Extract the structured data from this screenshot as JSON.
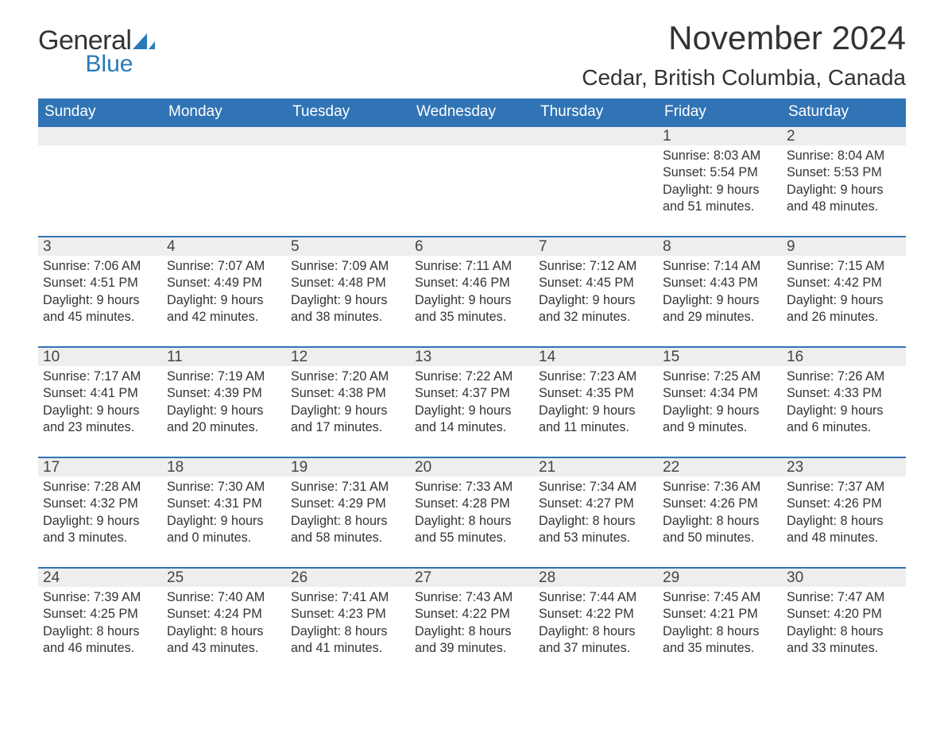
{
  "brand": {
    "text_general": "General",
    "text_blue": "Blue",
    "logo_bg": "#2a7ab8",
    "text_color_dark": "#333333"
  },
  "title": {
    "month": "November 2024",
    "location": "Cedar, British Columbia, Canada"
  },
  "colors": {
    "header_bg": "#3174b5",
    "header_text": "#ffffff",
    "date_bar_bg": "#eeeeee",
    "date_bar_border": "#3174b5",
    "body_bg": "#ffffff",
    "text": "#333333"
  },
  "typography": {
    "month_fontsize": 42,
    "location_fontsize": 28,
    "dayofweek_fontsize": 19,
    "date_fontsize": 19,
    "body_fontsize": 16.2,
    "font_family": "Arial, Helvetica, sans-serif"
  },
  "calendar": {
    "type": "table",
    "days_of_week": [
      "Sunday",
      "Monday",
      "Tuesday",
      "Wednesday",
      "Thursday",
      "Friday",
      "Saturday"
    ],
    "weeks": [
      [
        null,
        null,
        null,
        null,
        null,
        {
          "date": "1",
          "sunrise": "Sunrise: 8:03 AM",
          "sunset": "Sunset: 5:54 PM",
          "daylight": "Daylight: 9 hours and 51 minutes."
        },
        {
          "date": "2",
          "sunrise": "Sunrise: 8:04 AM",
          "sunset": "Sunset: 5:53 PM",
          "daylight": "Daylight: 9 hours and 48 minutes."
        }
      ],
      [
        {
          "date": "3",
          "sunrise": "Sunrise: 7:06 AM",
          "sunset": "Sunset: 4:51 PM",
          "daylight": "Daylight: 9 hours and 45 minutes."
        },
        {
          "date": "4",
          "sunrise": "Sunrise: 7:07 AM",
          "sunset": "Sunset: 4:49 PM",
          "daylight": "Daylight: 9 hours and 42 minutes."
        },
        {
          "date": "5",
          "sunrise": "Sunrise: 7:09 AM",
          "sunset": "Sunset: 4:48 PM",
          "daylight": "Daylight: 9 hours and 38 minutes."
        },
        {
          "date": "6",
          "sunrise": "Sunrise: 7:11 AM",
          "sunset": "Sunset: 4:46 PM",
          "daylight": "Daylight: 9 hours and 35 minutes."
        },
        {
          "date": "7",
          "sunrise": "Sunrise: 7:12 AM",
          "sunset": "Sunset: 4:45 PM",
          "daylight": "Daylight: 9 hours and 32 minutes."
        },
        {
          "date": "8",
          "sunrise": "Sunrise: 7:14 AM",
          "sunset": "Sunset: 4:43 PM",
          "daylight": "Daylight: 9 hours and 29 minutes."
        },
        {
          "date": "9",
          "sunrise": "Sunrise: 7:15 AM",
          "sunset": "Sunset: 4:42 PM",
          "daylight": "Daylight: 9 hours and 26 minutes."
        }
      ],
      [
        {
          "date": "10",
          "sunrise": "Sunrise: 7:17 AM",
          "sunset": "Sunset: 4:41 PM",
          "daylight": "Daylight: 9 hours and 23 minutes."
        },
        {
          "date": "11",
          "sunrise": "Sunrise: 7:19 AM",
          "sunset": "Sunset: 4:39 PM",
          "daylight": "Daylight: 9 hours and 20 minutes."
        },
        {
          "date": "12",
          "sunrise": "Sunrise: 7:20 AM",
          "sunset": "Sunset: 4:38 PM",
          "daylight": "Daylight: 9 hours and 17 minutes."
        },
        {
          "date": "13",
          "sunrise": "Sunrise: 7:22 AM",
          "sunset": "Sunset: 4:37 PM",
          "daylight": "Daylight: 9 hours and 14 minutes."
        },
        {
          "date": "14",
          "sunrise": "Sunrise: 7:23 AM",
          "sunset": "Sunset: 4:35 PM",
          "daylight": "Daylight: 9 hours and 11 minutes."
        },
        {
          "date": "15",
          "sunrise": "Sunrise: 7:25 AM",
          "sunset": "Sunset: 4:34 PM",
          "daylight": "Daylight: 9 hours and 9 minutes."
        },
        {
          "date": "16",
          "sunrise": "Sunrise: 7:26 AM",
          "sunset": "Sunset: 4:33 PM",
          "daylight": "Daylight: 9 hours and 6 minutes."
        }
      ],
      [
        {
          "date": "17",
          "sunrise": "Sunrise: 7:28 AM",
          "sunset": "Sunset: 4:32 PM",
          "daylight": "Daylight: 9 hours and 3 minutes."
        },
        {
          "date": "18",
          "sunrise": "Sunrise: 7:30 AM",
          "sunset": "Sunset: 4:31 PM",
          "daylight": "Daylight: 9 hours and 0 minutes."
        },
        {
          "date": "19",
          "sunrise": "Sunrise: 7:31 AM",
          "sunset": "Sunset: 4:29 PM",
          "daylight": "Daylight: 8 hours and 58 minutes."
        },
        {
          "date": "20",
          "sunrise": "Sunrise: 7:33 AM",
          "sunset": "Sunset: 4:28 PM",
          "daylight": "Daylight: 8 hours and 55 minutes."
        },
        {
          "date": "21",
          "sunrise": "Sunrise: 7:34 AM",
          "sunset": "Sunset: 4:27 PM",
          "daylight": "Daylight: 8 hours and 53 minutes."
        },
        {
          "date": "22",
          "sunrise": "Sunrise: 7:36 AM",
          "sunset": "Sunset: 4:26 PM",
          "daylight": "Daylight: 8 hours and 50 minutes."
        },
        {
          "date": "23",
          "sunrise": "Sunrise: 7:37 AM",
          "sunset": "Sunset: 4:26 PM",
          "daylight": "Daylight: 8 hours and 48 minutes."
        }
      ],
      [
        {
          "date": "24",
          "sunrise": "Sunrise: 7:39 AM",
          "sunset": "Sunset: 4:25 PM",
          "daylight": "Daylight: 8 hours and 46 minutes."
        },
        {
          "date": "25",
          "sunrise": "Sunrise: 7:40 AM",
          "sunset": "Sunset: 4:24 PM",
          "daylight": "Daylight: 8 hours and 43 minutes."
        },
        {
          "date": "26",
          "sunrise": "Sunrise: 7:41 AM",
          "sunset": "Sunset: 4:23 PM",
          "daylight": "Daylight: 8 hours and 41 minutes."
        },
        {
          "date": "27",
          "sunrise": "Sunrise: 7:43 AM",
          "sunset": "Sunset: 4:22 PM",
          "daylight": "Daylight: 8 hours and 39 minutes."
        },
        {
          "date": "28",
          "sunrise": "Sunrise: 7:44 AM",
          "sunset": "Sunset: 4:22 PM",
          "daylight": "Daylight: 8 hours and 37 minutes."
        },
        {
          "date": "29",
          "sunrise": "Sunrise: 7:45 AM",
          "sunset": "Sunset: 4:21 PM",
          "daylight": "Daylight: 8 hours and 35 minutes."
        },
        {
          "date": "30",
          "sunrise": "Sunrise: 7:47 AM",
          "sunset": "Sunset: 4:20 PM",
          "daylight": "Daylight: 8 hours and 33 minutes."
        }
      ]
    ]
  }
}
